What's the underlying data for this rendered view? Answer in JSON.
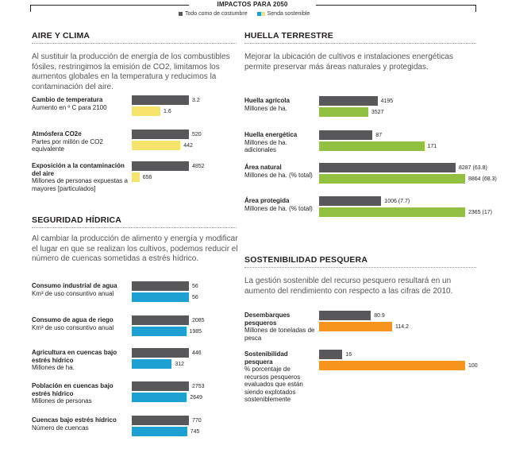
{
  "header": {
    "title": "IMPACTOS PARA 2050",
    "legend": [
      {
        "label": "Todo como de costumbre",
        "colors": [
          "#58585a"
        ]
      },
      {
        "label": "Senda sostenible",
        "colors": [
          "#1fa0d2",
          "#f5e36b"
        ]
      }
    ]
  },
  "colors": {
    "bau": "#58585a",
    "climate": "#f5e36b",
    "water": "#1fa0d2",
    "land": "#92c142",
    "fish": "#f7941d"
  },
  "sections": {
    "clima": {
      "title": "AIRE Y CLIMA",
      "intro": "Al sustituir la producción de energía de los combustibles fósiles, restringimos la emisión de CO2, limitamos los aumentos globales en la temperatura y reducimos la contaminación del aire."
    },
    "agua": {
      "title": "SEGURIDAD HÍDRICA",
      "intro": "Al cambiar la producción de alimento y energía y modificar el lugar en que se realizan los cultivos, podemos reducir el número de cuencas sometidas a estrés hídrico."
    },
    "tierra": {
      "title": "HUELLA TERRESTRE",
      "intro": "Mejorar la ubicación de cultivos e instalaciones energéticas permite preservar más áreas naturales y protegidas."
    },
    "pesca": {
      "title": "SOSTENIBILIDAD PESQUERA",
      "intro": "La gestión sostenible del recurso pesquero resultará en un aumento del rendimiento con respecto a las cifras de 2010."
    }
  },
  "chart_data": [
    {
      "type": "bar",
      "title": "AIRE Y CLIMA",
      "series_names": [
        "Todo como de costumbre",
        "Senda sostenible"
      ],
      "rows": [
        {
          "name": "Cambio de temperatura",
          "unit": "Aumento en º C para 2100",
          "values": [
            3.2,
            1.6
          ],
          "labels": [
            "3.2",
            "1.6"
          ]
        },
        {
          "name": "Atmósfera CO2e",
          "unit": "Partes por millón de CO2 equivalente",
          "values": [
            520,
            442
          ],
          "labels": [
            "520",
            "442"
          ]
        },
        {
          "name": "Exposición a la contaminación del aire",
          "unit": "Millones de personas expuestas a mayores [particulados]",
          "values": [
            4852,
            656
          ],
          "labels": [
            "4852",
            "656"
          ]
        }
      ]
    },
    {
      "type": "bar",
      "title": "SEGURIDAD HÍDRICA",
      "series_names": [
        "Todo como de costumbre",
        "Senda sostenible"
      ],
      "rows": [
        {
          "name": "Consumo industrial de agua",
          "unit": "Km³ de uso consuntivo anual",
          "values": [
            56,
            56
          ],
          "labels": [
            "56",
            "56"
          ]
        },
        {
          "name": "Consumo de agua de riego",
          "unit": "Km³ de uso consuntivo anual",
          "values": [
            2085,
            1985
          ],
          "labels": [
            "2085",
            "1985"
          ]
        },
        {
          "name": "Agricultura en cuencas bajo estrés hídrico",
          "unit": "Millones de ha.",
          "values": [
            446,
            312
          ],
          "labels": [
            "446",
            "312"
          ]
        },
        {
          "name": "Población en cuencas bajo estrés hídrico",
          "unit": "Millones de personas",
          "values": [
            2753,
            2649
          ],
          "labels": [
            "2753",
            "2649"
          ]
        },
        {
          "name": "Cuencas bajo estrés hídrico",
          "unit": "Número de cuencas",
          "values": [
            770,
            745
          ],
          "labels": [
            "770",
            "745"
          ]
        }
      ]
    },
    {
      "type": "bar",
      "title": "HUELLA TERRESTRE",
      "series_names": [
        "Todo como de costumbre",
        "Senda sostenible"
      ],
      "rows": [
        {
          "name": "Huella agrícola",
          "unit": "Millones de ha.",
          "values": [
            4195,
            3527
          ],
          "labels": [
            "4195",
            "3527"
          ]
        },
        {
          "name": "Huella energética",
          "unit": "Millones de ha. adicionales",
          "values": [
            87,
            171
          ],
          "labels": [
            "87",
            "171"
          ]
        },
        {
          "name": "Área natural",
          "unit": "Millones de ha. (% total)",
          "values": [
            8287,
            8864
          ],
          "labels": [
            "8287 (63.8)",
            "8864 (68.3)"
          ]
        },
        {
          "name": "Área protegida",
          "unit": "Millones de ha. (% total)",
          "values": [
            1006,
            2365
          ],
          "labels": [
            "1006 (7.7)",
            "2365 (17)"
          ]
        }
      ]
    },
    {
      "type": "bar",
      "title": "SOSTENIBILIDAD PESQUERA",
      "series_names": [
        "Todo como de costumbre",
        "Senda sostenible"
      ],
      "rows": [
        {
          "name": "Desembarques pesqueros",
          "unit": "Millones de toneladas de pesca",
          "values": [
            80.9,
            114.2
          ],
          "labels": [
            "80.9",
            "114.2"
          ]
        },
        {
          "name": "Sostenibilidad pesquera",
          "unit": "% porcentaje de recursos pesqueros evaluados que están siendo explotados sosteniblemente",
          "values": [
            16,
            100
          ],
          "labels": [
            "16",
            "100"
          ]
        }
      ]
    }
  ]
}
